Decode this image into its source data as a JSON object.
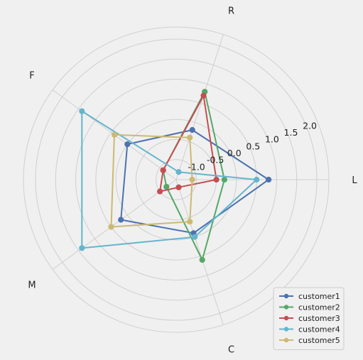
{
  "chart_data": {
    "type": "radar",
    "axes": [
      "L",
      "R",
      "F",
      "M",
      "C"
    ],
    "radial_ticks": [
      "-1.0",
      "-0.5",
      "0.0",
      "0.5",
      "1.0",
      "1.5",
      "2.0"
    ],
    "r_range": [
      -1.5,
      2.3
    ],
    "grid": true,
    "legend_position": "lower-right",
    "series": [
      {
        "name": "customer1",
        "color": "#4c72b0",
        "values": [
          0.8,
          -0.2,
          0.0,
          0.2,
          -0.1
        ]
      },
      {
        "name": "customer2",
        "color": "#55a868",
        "values": [
          -0.3,
          0.8,
          -1.1,
          -1.2,
          0.6
        ]
      },
      {
        "name": "customer3",
        "color": "#c44e52",
        "values": [
          -0.5,
          0.7,
          -1.1,
          -1.0,
          -1.3
        ]
      },
      {
        "name": "customer4",
        "color": "#64b5cd",
        "values": [
          0.5,
          -1.3,
          1.4,
          1.4,
          0.0
        ]
      },
      {
        "name": "customer5",
        "color": "#ccb974",
        "values": [
          -1.1,
          -0.4,
          0.4,
          0.5,
          -0.4
        ]
      }
    ]
  }
}
